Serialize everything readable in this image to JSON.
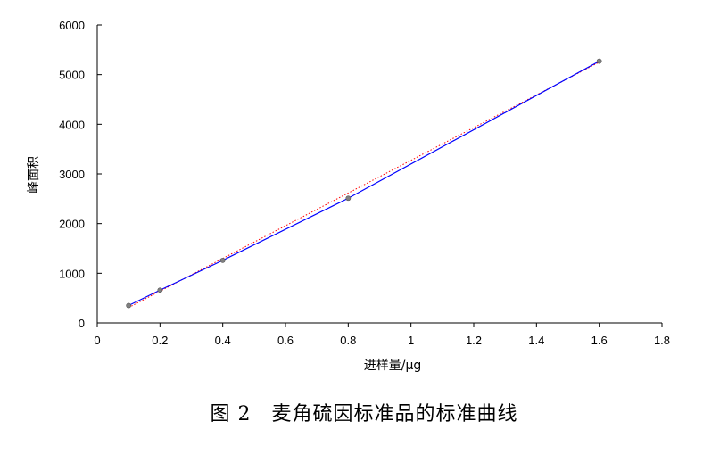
{
  "caption": "图 2　麦角硫因标准品的标准曲线",
  "chart_data": {
    "type": "scatter",
    "xlabel": "进样量/μg",
    "ylabel": "峰面积",
    "xlim": [
      0,
      1.8
    ],
    "ylim": [
      0,
      6000
    ],
    "x_ticks": [
      "0",
      "0.2",
      "0.4",
      "0.6",
      "0.8",
      "1",
      "1.2",
      "1.4",
      "1.6",
      "1.8"
    ],
    "y_ticks": [
      "0",
      "1000",
      "2000",
      "3000",
      "4000",
      "5000",
      "6000"
    ],
    "grid": false,
    "legend": "none",
    "series": [
      {
        "x": [
          0.1,
          0.2,
          0.4,
          0.8,
          1.6
        ],
        "y": [
          350,
          660,
          1260,
          2510,
          5270
        ],
        "color": "#0000ff",
        "marker_color": "#808080"
      }
    ],
    "trendline": {
      "from": [
        0.1,
        310
      ],
      "to": [
        1.6,
        5250
      ],
      "color": "#ff0000",
      "style": "dotted"
    }
  }
}
